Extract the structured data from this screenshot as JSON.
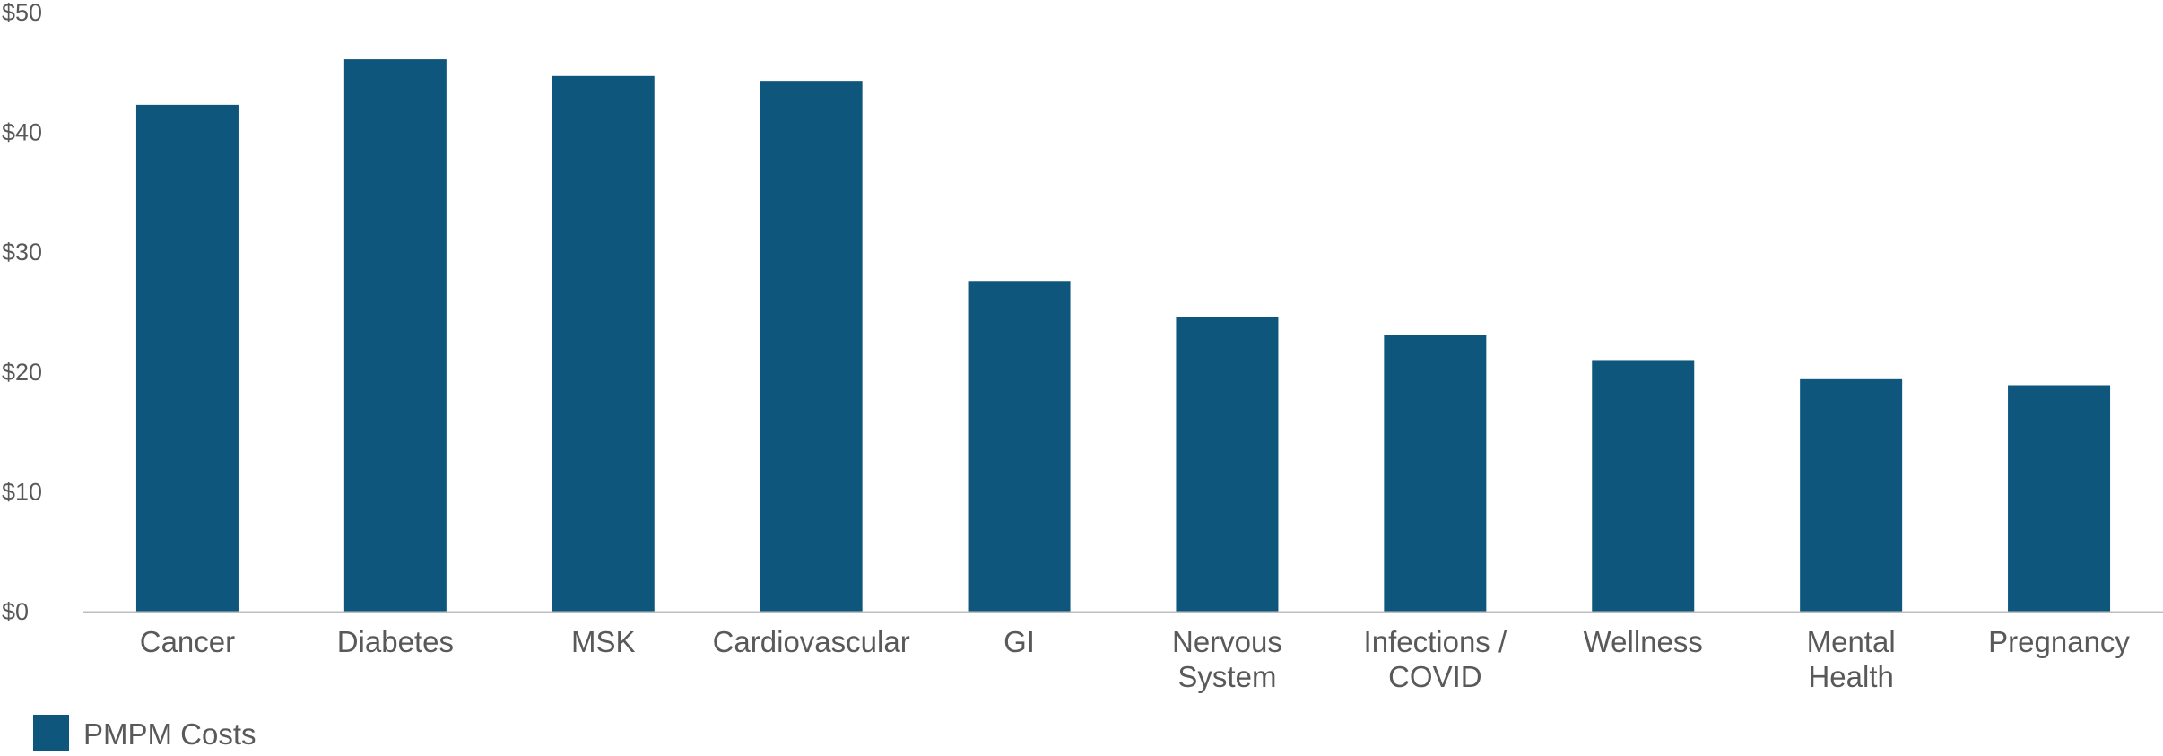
{
  "chart_data": {
    "type": "bar",
    "categories": [
      "Cancer",
      "Diabetes",
      "MSK",
      "Cardiovascular",
      "GI",
      "Nervous System",
      "Infections / COVID",
      "Wellness",
      "Mental Health",
      "Pregnancy"
    ],
    "category_lines": [
      [
        "Cancer"
      ],
      [
        "Diabetes"
      ],
      [
        "MSK"
      ],
      [
        "Cardiovascular"
      ],
      [
        "GI"
      ],
      [
        "Nervous",
        "System"
      ],
      [
        "Infections /",
        "COVID"
      ],
      [
        "Wellness"
      ],
      [
        "Mental",
        "Health"
      ],
      [
        "Pregnancy"
      ]
    ],
    "series": [
      {
        "name": "PMPM Costs",
        "color": "#0e567c",
        "values": [
          42.3,
          46.1,
          44.7,
          44.3,
          27.6,
          24.6,
          23.1,
          21.0,
          19.4,
          18.9
        ]
      }
    ],
    "yticks": [
      0,
      10,
      20,
      30,
      40,
      50
    ],
    "ytick_labels": [
      "$0",
      "$10",
      "$20",
      "$30",
      "$40",
      "$50"
    ],
    "ylim": [
      0,
      50
    ],
    "title": "",
    "xlabel": "",
    "ylabel": "",
    "grid": false,
    "legend": "bottom-left",
    "axis_color": "#bfbfbf"
  }
}
